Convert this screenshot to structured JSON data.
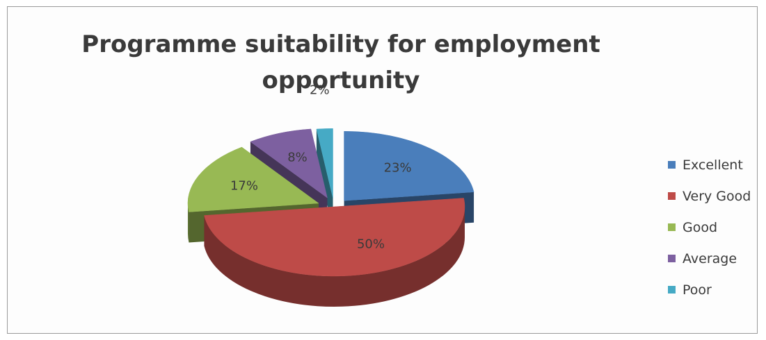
{
  "chart_data": {
    "type": "pie",
    "title": "Programme suitability for employment opportunity",
    "categories": [
      "Excellent",
      "Very Good",
      "Good",
      "Average",
      "Poor"
    ],
    "values": [
      23,
      50,
      17,
      8,
      2
    ],
    "labels": [
      "23%",
      "50%",
      "17%",
      "8%",
      "2%"
    ],
    "colors": [
      "#4a7ebb",
      "#be4b48",
      "#98b954",
      "#7d60a0",
      "#46aac5"
    ],
    "legend": "right",
    "style": "3d-exploded"
  }
}
